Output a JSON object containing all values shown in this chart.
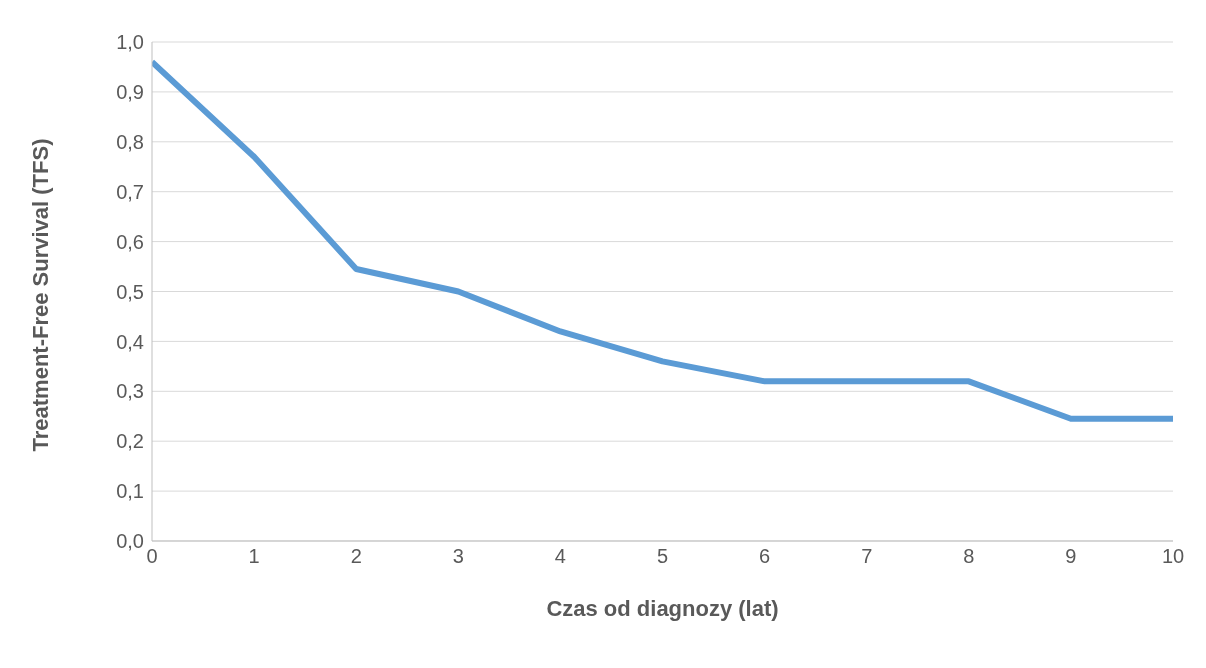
{
  "chart_data": {
    "type": "line",
    "xlabel": "Czas od diagnozy (lat)",
    "ylabel": "Treatment-Free Survival (TFS)",
    "x": [
      0,
      1,
      2,
      3,
      4,
      5,
      6,
      7,
      8,
      9,
      10
    ],
    "series": [
      {
        "color": "#5b9bd5",
        "values": [
          0.96,
          0.77,
          0.545,
          0.5,
          0.42,
          0.36,
          0.32,
          0.32,
          0.32,
          0.245,
          0.245
        ]
      }
    ],
    "xlim": [
      0,
      10
    ],
    "xticks": [
      0,
      1,
      2,
      3,
      4,
      5,
      6,
      7,
      8,
      9,
      10
    ],
    "ylim": [
      0,
      1
    ],
    "yticks": [
      {
        "value": 0,
        "label": "0,0"
      },
      {
        "value": 0.1,
        "label": "0,1"
      },
      {
        "value": 0.2,
        "label": "0,2"
      },
      {
        "value": 0.3,
        "label": "0,3"
      },
      {
        "value": 0.4,
        "label": "0,4"
      },
      {
        "value": 0.5,
        "label": "0,5"
      },
      {
        "value": 0.6,
        "label": "0,6"
      },
      {
        "value": 0.7,
        "label": "0,7"
      },
      {
        "value": 0.8,
        "label": "0,8"
      },
      {
        "value": 0.9,
        "label": "0,9"
      },
      {
        "value": 1,
        "label": "1,0"
      }
    ],
    "grid": "y",
    "marker": "none",
    "line_style": "solid",
    "legend": false
  }
}
